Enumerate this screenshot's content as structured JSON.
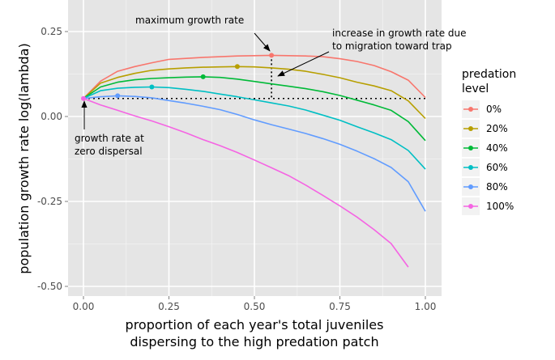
{
  "chart_data": {
    "type": "line",
    "xlabel_line1": "proportion of each year's total juveniles",
    "xlabel_line2": "dispersing to the high predation patch",
    "ylabel": "population growth rate log(lambda)",
    "xlim": [
      0,
      1
    ],
    "ylim": [
      -0.5,
      0.25
    ],
    "x_ticks": [
      0.0,
      0.25,
      0.5,
      0.75,
      1.0
    ],
    "x_tick_labels": [
      "0.00",
      "0.25",
      "0.50",
      "0.75",
      "1.00"
    ],
    "y_ticks": [
      0.25,
      0.0,
      -0.25,
      -0.5
    ],
    "y_tick_labels": [
      "0.25",
      "0.00",
      "-0.25",
      "-0.50"
    ],
    "grid": true,
    "background": "#e5e5e5",
    "baseline": 0.053,
    "legend": {
      "title_line1": "predation",
      "title_line2": "level",
      "placement": "right"
    },
    "series": [
      {
        "name": "0%",
        "color": "#f8766d",
        "x": [
          0,
          0.05,
          0.1,
          0.15,
          0.2,
          0.25,
          0.3,
          0.35,
          0.4,
          0.45,
          0.5,
          0.55,
          0.6,
          0.65,
          0.7,
          0.75,
          0.8,
          0.85,
          0.9,
          0.95,
          1.0
        ],
        "y": [
          0.053,
          0.104,
          0.133,
          0.147,
          0.158,
          0.168,
          0.171,
          0.174,
          0.176,
          0.178,
          0.179,
          0.18,
          0.179,
          0.178,
          0.176,
          0.17,
          0.162,
          0.15,
          0.132,
          0.107,
          0.056
        ],
        "peak": [
          0.55,
          0.18
        ]
      },
      {
        "name": "20%",
        "color": "#b79f00",
        "x": [
          0,
          0.05,
          0.1,
          0.15,
          0.2,
          0.25,
          0.3,
          0.35,
          0.4,
          0.45,
          0.5,
          0.55,
          0.6,
          0.65,
          0.7,
          0.75,
          0.8,
          0.85,
          0.9,
          0.95,
          1.0
        ],
        "y": [
          0.053,
          0.098,
          0.115,
          0.127,
          0.136,
          0.14,
          0.143,
          0.145,
          0.146,
          0.147,
          0.146,
          0.143,
          0.139,
          0.133,
          0.124,
          0.114,
          0.101,
          0.09,
          0.076,
          0.046,
          -0.006
        ],
        "peak": [
          0.45,
          0.147
        ]
      },
      {
        "name": "40%",
        "color": "#00ba38",
        "x": [
          0,
          0.05,
          0.1,
          0.15,
          0.2,
          0.25,
          0.3,
          0.35,
          0.4,
          0.45,
          0.5,
          0.55,
          0.6,
          0.65,
          0.7,
          0.75,
          0.8,
          0.85,
          0.9,
          0.95,
          1.0
        ],
        "y": [
          0.053,
          0.087,
          0.101,
          0.108,
          0.112,
          0.114,
          0.116,
          0.117,
          0.115,
          0.11,
          0.103,
          0.096,
          0.089,
          0.082,
          0.073,
          0.062,
          0.048,
          0.034,
          0.018,
          -0.015,
          -0.071
        ],
        "peak": [
          0.35,
          0.117
        ]
      },
      {
        "name": "60%",
        "color": "#00bfc4",
        "x": [
          0,
          0.05,
          0.1,
          0.15,
          0.2,
          0.25,
          0.3,
          0.35,
          0.4,
          0.45,
          0.5,
          0.55,
          0.6,
          0.65,
          0.7,
          0.75,
          0.8,
          0.85,
          0.9,
          0.95,
          1.0
        ],
        "y": [
          0.053,
          0.076,
          0.083,
          0.086,
          0.087,
          0.085,
          0.08,
          0.074,
          0.066,
          0.058,
          0.049,
          0.04,
          0.031,
          0.019,
          0.004,
          -0.011,
          -0.03,
          -0.048,
          -0.068,
          -0.1,
          -0.155
        ],
        "peak": [
          0.2,
          0.087
        ]
      },
      {
        "name": "80%",
        "color": "#619cff",
        "x": [
          0,
          0.05,
          0.1,
          0.15,
          0.2,
          0.25,
          0.3,
          0.35,
          0.4,
          0.45,
          0.5,
          0.55,
          0.6,
          0.65,
          0.7,
          0.75,
          0.8,
          0.85,
          0.9,
          0.95,
          1.0
        ],
        "y": [
          0.053,
          0.058,
          0.061,
          0.059,
          0.055,
          0.047,
          0.039,
          0.03,
          0.02,
          0.006,
          -0.01,
          -0.024,
          -0.037,
          -0.05,
          -0.065,
          -0.082,
          -0.102,
          -0.124,
          -0.15,
          -0.192,
          -0.279
        ],
        "peak": [
          0.1,
          0.061
        ]
      },
      {
        "name": "100%",
        "color": "#f564e3",
        "x": [
          0,
          0.05,
          0.1,
          0.15,
          0.2,
          0.25,
          0.3,
          0.35,
          0.4,
          0.45,
          0.5,
          0.55,
          0.6,
          0.65,
          0.7,
          0.75,
          0.8,
          0.85,
          0.9,
          0.95
        ],
        "y": [
          0.053,
          0.034,
          0.018,
          0.002,
          -0.013,
          -0.03,
          -0.048,
          -0.068,
          -0.086,
          -0.106,
          -0.128,
          -0.151,
          -0.174,
          -0.202,
          -0.232,
          -0.263,
          -0.296,
          -0.333,
          -0.374,
          -0.443
        ],
        "peak": [
          0,
          0.053
        ]
      }
    ],
    "annotations": [
      {
        "text": "maximum growth rate"
      },
      {
        "text_line1": "increase in growth rate due",
        "text_line2": "to migration toward trap"
      },
      {
        "text_line1": "growth rate at",
        "text_line2": "zero dispersal"
      }
    ]
  }
}
